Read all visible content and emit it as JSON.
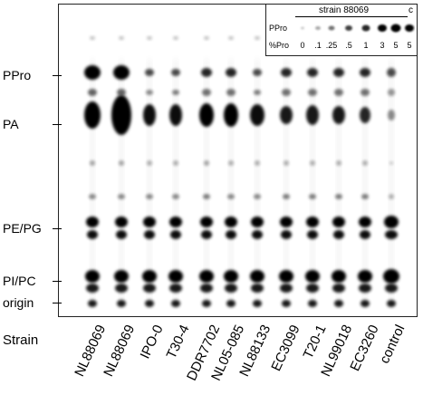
{
  "row_labels": {
    "ppro": "PPro",
    "pa": "PA",
    "pe_pg": "PE/PG",
    "pi_pc": "PI/PC",
    "origin": "origin"
  },
  "strain_label": "Strain",
  "lanes": [
    "NL88069",
    "NL88069",
    "IPO-0",
    "T30-4",
    "DDR7702",
    "NL05-085",
    "NL88133",
    "EC3099",
    "T20-1",
    "NL99018",
    "EC3260",
    "control"
  ],
  "inset": {
    "title": "strain 88069",
    "panel_letter": "c",
    "ppro_label": "PPro",
    "pct_label": "%Pro",
    "pct_values": [
      "0",
      ".1",
      ".25",
      ".5",
      "1",
      "3",
      "5",
      "5"
    ]
  }
}
